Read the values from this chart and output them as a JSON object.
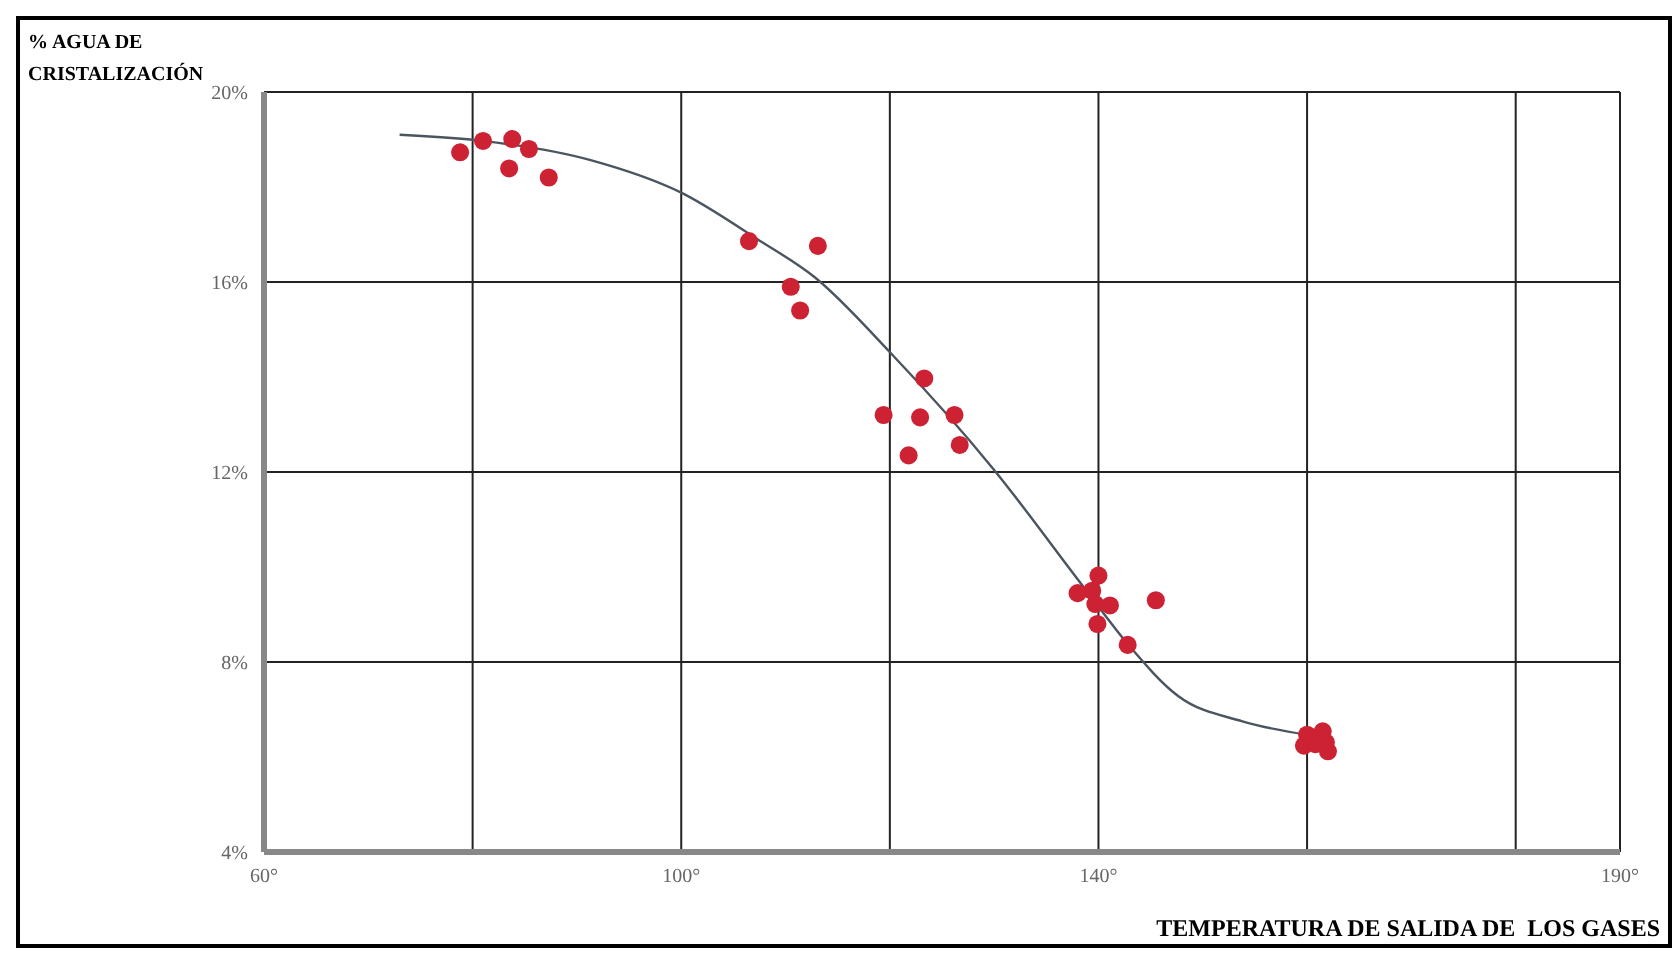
{
  "chart_data": {
    "type": "scatter",
    "xlabel": "TEMPERATURA DE SALIDA DE  LOS GASES",
    "ylabel": "% AGUA DE CRISTALIZACIÓN",
    "xlim": [
      60,
      190
    ],
    "xticks": [
      {
        "value": 60,
        "label": "60°"
      },
      {
        "value": 80,
        "label": null
      },
      {
        "value": 100,
        "label": "100°"
      },
      {
        "value": 120,
        "label": null
      },
      {
        "value": 140,
        "label": "140°"
      },
      {
        "value": 160,
        "label": null
      },
      {
        "value": 180,
        "label": null
      },
      {
        "value": 190,
        "label": "190°"
      }
    ],
    "ylim": [
      4,
      20
    ],
    "yticks": [
      {
        "value": 4,
        "label": "4%"
      },
      {
        "value": 8,
        "label": "8%"
      },
      {
        "value": 12,
        "label": "12%"
      },
      {
        "value": 16,
        "label": "16%"
      },
      {
        "value": 20,
        "label": "20%"
      }
    ],
    "grid": true,
    "series": [
      {
        "type": "line",
        "color": "#4a5560",
        "marker": "none",
        "x": [
          73,
          81,
          91.4,
          100,
          107.3,
          112.8,
          120.1,
          129.9,
          138.5,
          142.8,
          147.6,
          153.8,
          159.9
        ],
        "values": [
          19.1,
          18.97,
          18.56,
          17.88,
          16.9,
          16.1,
          14.5,
          12.07,
          9.6,
          8.38,
          7.29,
          6.75,
          6.47
        ]
      },
      {
        "color": "#cc2233",
        "marker": "circle",
        "x": [
          78.8,
          81,
          83.8,
          85.4,
          83.5,
          87.3,
          106.5,
          113.1,
          110.5,
          111.4,
          123.3,
          119.4,
          122.9,
          126.2,
          121.8,
          126.7,
          140,
          138,
          139.4,
          139.7,
          141.1,
          145.5,
          139.9,
          142.8,
          160,
          161.5,
          159.7,
          160.8,
          161.8,
          162
        ],
        "values": [
          18.73,
          18.97,
          19.01,
          18.8,
          18.39,
          18.2,
          16.86,
          16.76,
          15.9,
          15.4,
          13.97,
          13.2,
          13.15,
          13.2,
          12.35,
          12.57,
          9.82,
          9.45,
          9.5,
          9.22,
          9.19,
          9.3,
          8.8,
          8.36,
          6.47,
          6.54,
          6.24,
          6.27,
          6.31,
          6.12
        ]
      }
    ]
  }
}
